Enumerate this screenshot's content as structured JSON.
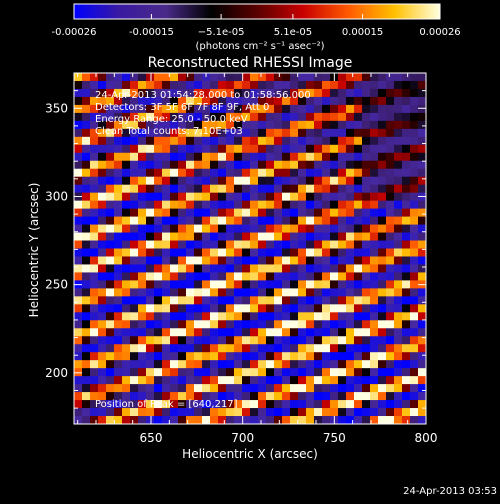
{
  "colorbar": {
    "tick_labels": [
      "-0.00026",
      "-0.00015",
      "−5.1e-05",
      "5.1e-05",
      "0.00015",
      "0.00026"
    ],
    "tick_values": [
      -0.00026,
      -0.00015,
      -5.1e-05,
      5.1e-05,
      0.00015,
      0.00026
    ],
    "range": [
      -0.00026,
      0.00026
    ],
    "units_label": "(photons cm⁻² s⁻¹ asec⁻²)",
    "colors": [
      "#0000ff",
      "#3a1aa0",
      "#4a2a8a",
      "#000000",
      "#5a0000",
      "#c80000",
      "#ff5a00",
      "#ffc000",
      "#ffffe0"
    ]
  },
  "chart_data": {
    "type": "heatmap",
    "title": "Reconstructed RHESSI Image",
    "xlabel": "Heliocentric X (arcsec)",
    "ylabel": "Heliocentric Y (arcsec)",
    "xlim": [
      608,
      800
    ],
    "ylim": [
      171,
      370
    ],
    "x_ticks": [
      650,
      700,
      750,
      800
    ],
    "y_ticks": [
      200,
      250,
      300,
      350
    ],
    "x_tick_labels": [
      "650",
      "700",
      "750",
      "800"
    ],
    "y_tick_labels": [
      "200",
      "250",
      "300",
      "350"
    ],
    "annotations": [
      "24-Apr-2013 01:54:28.000 to 01:58:56.000",
      "Detectors: 3F 5F 6F 7F 8F 9F, Att 0",
      "Energy Range: 25.0 - 50.0 keV",
      "Clean     Total counts: 7.10E+03"
    ],
    "peak_label": "Position of Peak = [640,217]",
    "peak_position": [
      640,
      217
    ],
    "pattern": "diagonal fringe stripes, brighter toward lower-left"
  },
  "footer": {
    "timestamp": "24-Apr-2013 03:53"
  }
}
